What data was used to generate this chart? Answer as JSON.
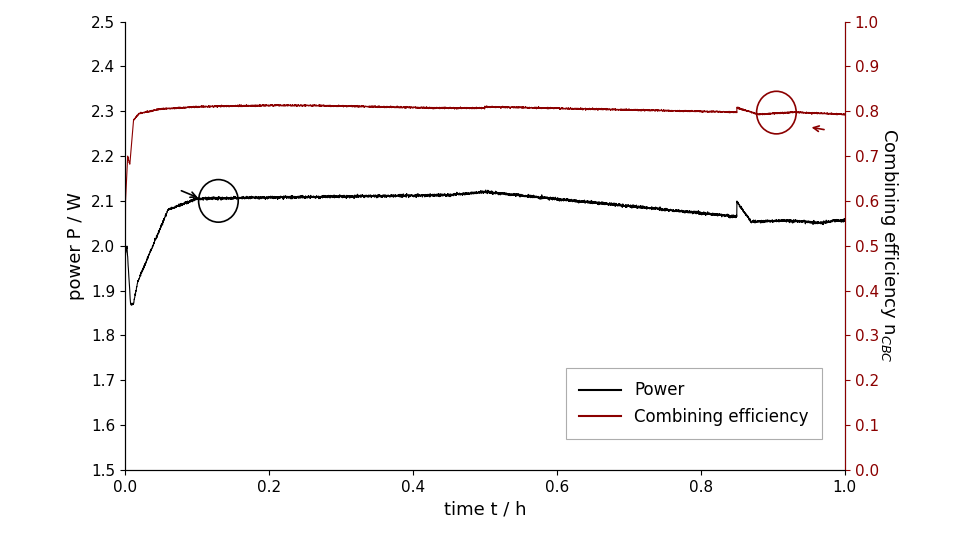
{
  "title": "",
  "xlabel": "time t / h",
  "ylabel_left": "power P / W",
  "ylabel_right": "Combining efficiency n$_{CBC}$",
  "xlim": [
    0.0,
    1.0
  ],
  "ylim_left": [
    1.5,
    2.5
  ],
  "ylim_right": [
    0.0,
    1.0
  ],
  "xticks": [
    0.0,
    0.2,
    0.4,
    0.6,
    0.8,
    1.0
  ],
  "yticks_left": [
    1.5,
    1.6,
    1.7,
    1.8,
    1.9,
    2.0,
    2.1,
    2.2,
    2.3,
    2.4,
    2.5
  ],
  "yticks_right": [
    0.0,
    0.1,
    0.2,
    0.3,
    0.4,
    0.5,
    0.6,
    0.7,
    0.8,
    0.9,
    1.0
  ],
  "power_color": "#000000",
  "efficiency_color": "#8b0000",
  "legend_labels": [
    "Power",
    "Combining efficiency"
  ],
  "background": "#ffffff"
}
